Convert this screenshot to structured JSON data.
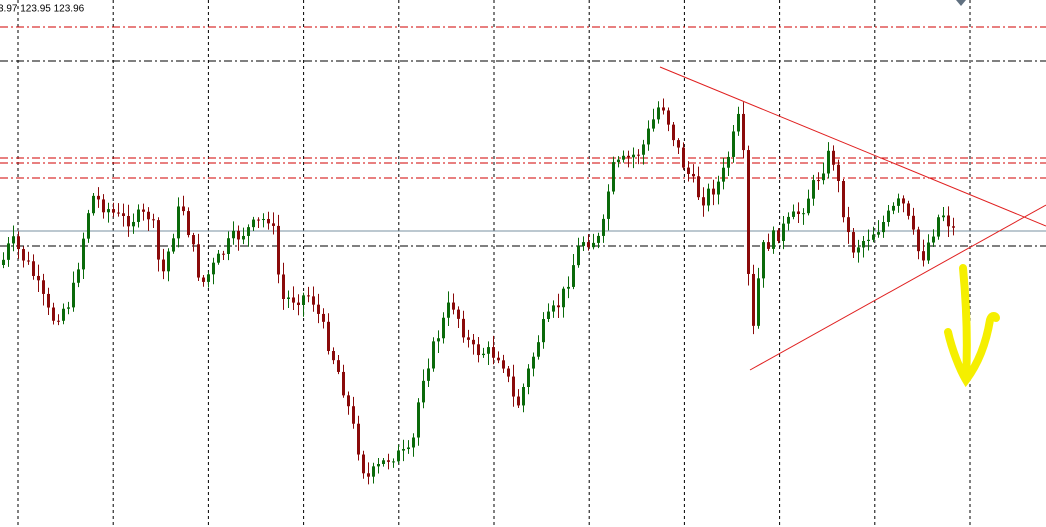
{
  "header": {
    "quote": "3.97 123.95 123.96"
  }
}
